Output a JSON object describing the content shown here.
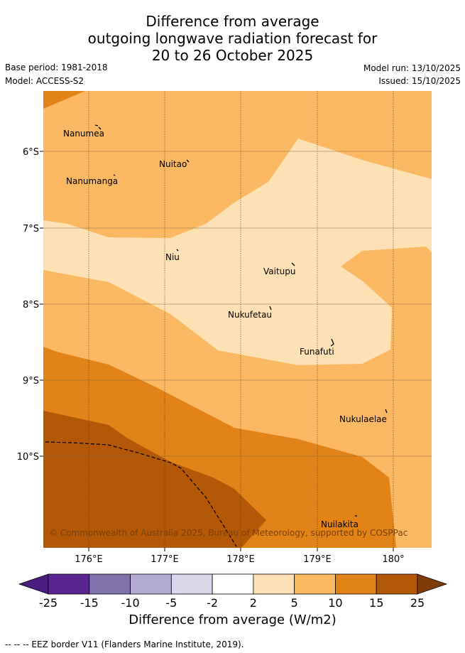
{
  "title": {
    "line1": "Difference from average",
    "line2": "outgoing longwave radiation forecast for",
    "line3": "20 to 26 October 2025"
  },
  "meta": {
    "base_period": "Base period: 1981-2018",
    "model": "Model: ACCESS-S2",
    "model_run": "Model run: 13/10/2025",
    "issued": "Issued: 15/10/2025"
  },
  "map": {
    "lat_ticks": [
      "6°S",
      "7°S",
      "8°S",
      "9°S",
      "10°S"
    ],
    "lon_ticks": [
      "176°E",
      "177°E",
      "178°E",
      "179°E",
      "180°"
    ],
    "places": [
      {
        "name": "Nanumea"
      },
      {
        "name": "Nuitao"
      },
      {
        "name": "Nanumanga"
      },
      {
        "name": "Niu"
      },
      {
        "name": "Vaitupu"
      },
      {
        "name": "Nukufetau"
      },
      {
        "name": "Funafuti"
      },
      {
        "name": "Nukulaelae"
      },
      {
        "name": "Nuilakita"
      }
    ],
    "copyright": "© Commonwealth of Australia 2025, Bureau of Meteorology, supported by COSPPac"
  },
  "colorbar": {
    "tick_labels": [
      "-25",
      "-15",
      "-10",
      "-5",
      "-2",
      "2",
      "5",
      "10",
      "15",
      "25"
    ],
    "colors": [
      "#4a1d7e",
      "#5c2491",
      "#8073ad",
      "#b3aad2",
      "#d8d8ea",
      "#ffffff",
      "#fde0b4",
      "#fbb863",
      "#e18316",
      "#b25806",
      "#7f3b08"
    ],
    "title": "Difference from average (W/m2)"
  },
  "footer": {
    "legend": "-- -- -- EEZ border V11 (Flanders Marine Institute, 2019)."
  }
}
